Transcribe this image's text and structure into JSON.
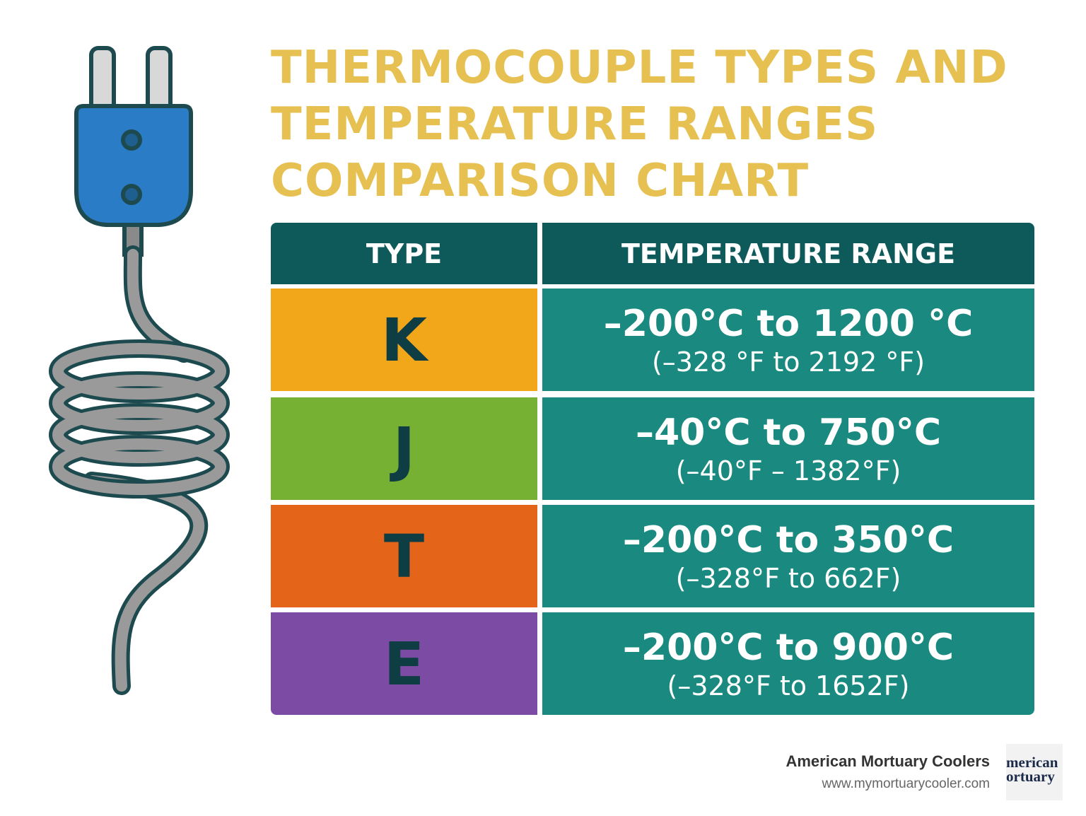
{
  "header": {
    "title_lines": [
      "THERMOCOUPLE TYPES AND",
      "TEMPERATURE RANGES",
      "COMPARISON CHART"
    ]
  },
  "table": {
    "columns": [
      "TYPE",
      "TEMPERATURE RANGE"
    ],
    "rows": [
      {
        "type": "K",
        "celsius": "–200°C to 1200 °C",
        "fahrenheit": "(–328 °F to 2192 °F)"
      },
      {
        "type": "J",
        "celsius": "–40°C to 750°C",
        "fahrenheit": "(–40°F – 1382°F)"
      },
      {
        "type": "T",
        "celsius": "–200°C to 350°C",
        "fahrenheit": "(–328°F to 662F)"
      },
      {
        "type": "E",
        "celsius": "–200°C to 900°C",
        "fahrenheit": "(–328°F to 1652F)"
      }
    ]
  },
  "footer": {
    "brand": "American Mortuary Coolers",
    "url": "www.mymortuarycooler.com",
    "logo_lines": [
      "merican",
      "ortuary"
    ]
  }
}
